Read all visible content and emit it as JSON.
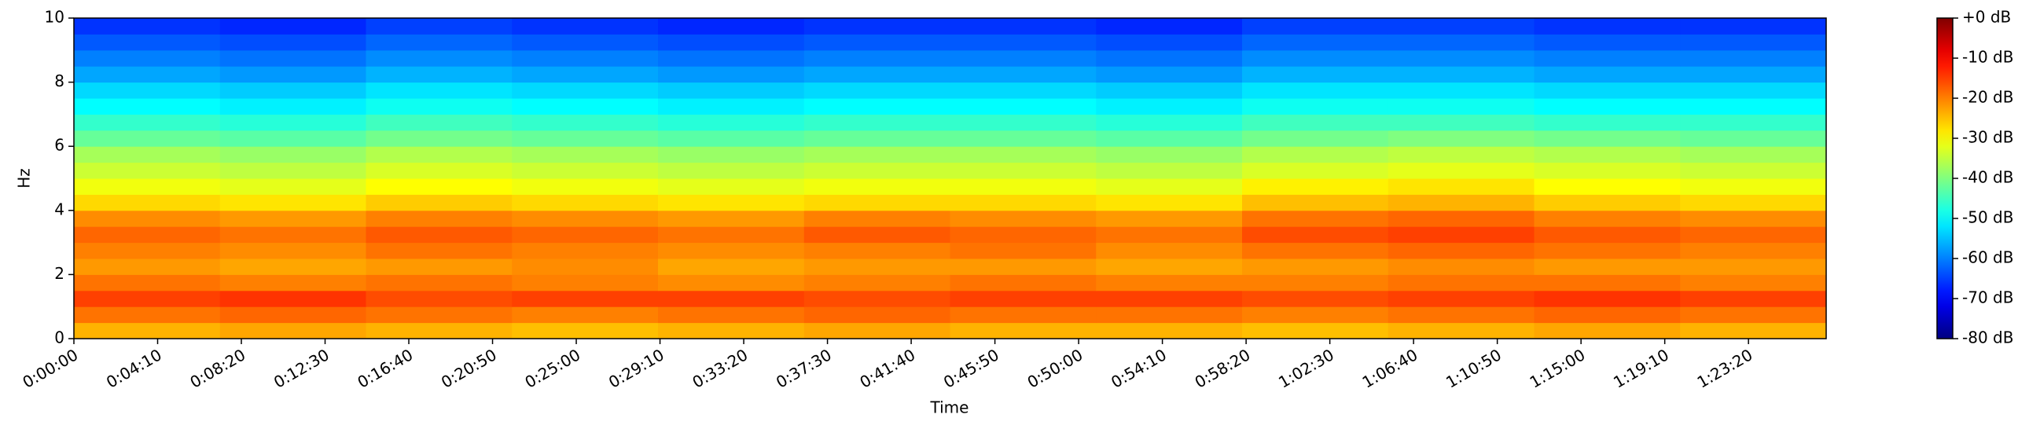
{
  "chart_data": {
    "type": "heatmap",
    "colormap": "jet",
    "xlabel": "Time",
    "ylabel": "Hz",
    "xlim": [
      0,
      5232
    ],
    "ylim": [
      0,
      10
    ],
    "zlim": [
      -80,
      0
    ],
    "xticks": [
      {
        "value": 0,
        "label": "0:00:00"
      },
      {
        "value": 250,
        "label": "0:04:10"
      },
      {
        "value": 500,
        "label": "0:08:20"
      },
      {
        "value": 750,
        "label": "0:12:30"
      },
      {
        "value": 1000,
        "label": "0:16:40"
      },
      {
        "value": 1250,
        "label": "0:20:50"
      },
      {
        "value": 1500,
        "label": "0:25:00"
      },
      {
        "value": 1750,
        "label": "0:29:10"
      },
      {
        "value": 2000,
        "label": "0:33:20"
      },
      {
        "value": 2250,
        "label": "0:37:30"
      },
      {
        "value": 2500,
        "label": "0:41:40"
      },
      {
        "value": 2750,
        "label": "0:45:50"
      },
      {
        "value": 3000,
        "label": "0:50:00"
      },
      {
        "value": 3250,
        "label": "0:54:10"
      },
      {
        "value": 3500,
        "label": "0:58:20"
      },
      {
        "value": 3750,
        "label": "1:02:30"
      },
      {
        "value": 4000,
        "label": "1:06:40"
      },
      {
        "value": 4250,
        "label": "1:10:50"
      },
      {
        "value": 4500,
        "label": "1:15:00"
      },
      {
        "value": 4750,
        "label": "1:19:10"
      },
      {
        "value": 5000,
        "label": "1:23:20"
      }
    ],
    "yticks": [
      0,
      2,
      4,
      6,
      8,
      10
    ],
    "zticks": [
      {
        "value": 0,
        "label": "+0 dB"
      },
      {
        "value": -10,
        "label": "-10 dB"
      },
      {
        "value": -20,
        "label": "-20 dB"
      },
      {
        "value": -30,
        "label": "-30 dB"
      },
      {
        "value": -40,
        "label": "-40 dB"
      },
      {
        "value": -50,
        "label": "-50 dB"
      },
      {
        "value": -60,
        "label": "-60 dB"
      },
      {
        "value": -70,
        "label": "-70 dB"
      },
      {
        "value": -80,
        "label": "-80 dB"
      }
    ],
    "xbins": [
      0,
      436,
      872,
      1308,
      1744,
      2180,
      2616,
      3052,
      3488,
      3924,
      4360,
      4796,
      5232
    ],
    "ybins": [
      0,
      0.5,
      1,
      1.5,
      2,
      2.5,
      3,
      3.5,
      4,
      4.5,
      5,
      5.5,
      6,
      6.5,
      7,
      7.5,
      8,
      8.5,
      9,
      9.5,
      10
    ],
    "z": [
      [
        -24,
        -23,
        -24,
        -25,
        -24,
        -23,
        -24,
        -24,
        -25,
        -24,
        -23,
        -24
      ],
      [
        -19,
        -18,
        -19,
        -20,
        -19,
        -18,
        -19,
        -19,
        -20,
        -19,
        -18,
        -19
      ],
      [
        -15,
        -14,
        -16,
        -15,
        -15,
        -16,
        -15,
        -15,
        -16,
        -15,
        -14,
        -15
      ],
      [
        -19,
        -20,
        -19,
        -20,
        -21,
        -20,
        -19,
        -20,
        -20,
        -19,
        -19,
        -20
      ],
      [
        -22,
        -23,
        -22,
        -21,
        -23,
        -22,
        -22,
        -23,
        -22,
        -21,
        -22,
        -22
      ],
      [
        -20,
        -21,
        -19,
        -20,
        -21,
        -20,
        -19,
        -21,
        -19,
        -18,
        -19,
        -20
      ],
      [
        -18,
        -19,
        -17,
        -18,
        -19,
        -17,
        -18,
        -19,
        -16,
        -15,
        -17,
        -18
      ],
      [
        -21,
        -22,
        -20,
        -21,
        -22,
        -20,
        -21,
        -22,
        -19,
        -18,
        -20,
        -21
      ],
      [
        -27,
        -28,
        -26,
        -27,
        -28,
        -27,
        -27,
        -28,
        -25,
        -24,
        -26,
        -27
      ],
      [
        -31,
        -32,
        -30,
        -31,
        -32,
        -31,
        -31,
        -32,
        -29,
        -28,
        -30,
        -31
      ],
      [
        -34,
        -35,
        -33,
        -34,
        -35,
        -34,
        -34,
        -35,
        -33,
        -32,
        -33,
        -34
      ],
      [
        -37,
        -38,
        -36,
        -37,
        -38,
        -37,
        -37,
        -38,
        -36,
        -35,
        -36,
        -37
      ],
      [
        -42,
        -43,
        -41,
        -42,
        -43,
        -42,
        -42,
        -43,
        -41,
        -40,
        -41,
        -42
      ],
      [
        -46,
        -47,
        -45,
        -46,
        -47,
        -46,
        -46,
        -47,
        -45,
        -45,
        -46,
        -46
      ],
      [
        -50,
        -51,
        -49,
        -50,
        -51,
        -50,
        -50,
        -51,
        -49,
        -49,
        -50,
        -50
      ],
      [
        -53,
        -54,
        -52,
        -53,
        -54,
        -53,
        -53,
        -54,
        -52,
        -52,
        -53,
        -53
      ],
      [
        -57,
        -58,
        -56,
        -57,
        -58,
        -57,
        -57,
        -58,
        -56,
        -56,
        -57,
        -57
      ],
      [
        -60,
        -61,
        -59,
        -60,
        -61,
        -60,
        -60,
        -61,
        -59,
        -59,
        -60,
        -60
      ],
      [
        -63,
        -64,
        -62,
        -63,
        -64,
        -63,
        -63,
        -64,
        -62,
        -62,
        -63,
        -63
      ],
      [
        -66,
        -67,
        -65,
        -66,
        -67,
        -66,
        -66,
        -67,
        -65,
        -65,
        -66,
        -66
      ]
    ]
  }
}
